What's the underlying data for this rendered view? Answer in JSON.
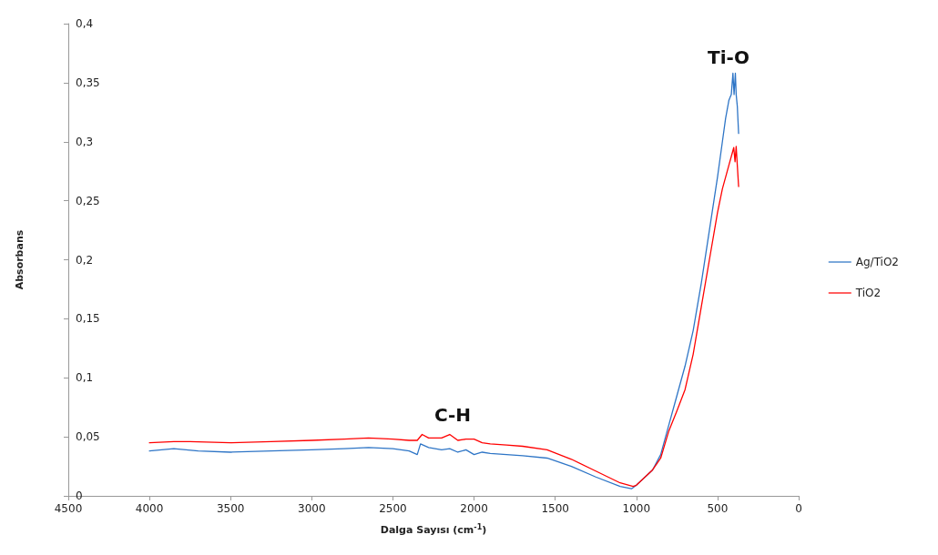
{
  "chart_data": {
    "type": "line",
    "xlabel": "Dalga Sayısı (cm$^{-1}$)",
    "ylabel": "Absorbans",
    "xlim": [
      4500,
      0
    ],
    "xticks": [
      4500,
      4000,
      3500,
      3000,
      2500,
      2000,
      1500,
      1000,
      500,
      0
    ],
    "ylim": [
      0,
      0.4
    ],
    "yticks": [
      {
        "value": 0,
        "label": "0"
      },
      {
        "value": 0.05,
        "label": "0,05"
      },
      {
        "value": 0.1,
        "label": "0,1"
      },
      {
        "value": 0.15,
        "label": "0,15"
      },
      {
        "value": 0.2,
        "label": "0,2"
      },
      {
        "value": 0.25,
        "label": "0,25"
      },
      {
        "value": 0.3,
        "label": "0,3"
      },
      {
        "value": 0.35,
        "label": "0,35"
      },
      {
        "value": 0.4,
        "label": "0,4"
      }
    ],
    "grid": false,
    "legend": "right",
    "marker": "none",
    "line_style": "solid",
    "annotations": [
      "C-H",
      "Ti-O"
    ],
    "series": [
      {
        "name": "Ag/TiO2",
        "color": "#2e75c6",
        "x": [
          4000,
          3850,
          3700,
          3500,
          3250,
          3000,
          2800,
          2650,
          2500,
          2400,
          2350,
          2330,
          2280,
          2200,
          2150,
          2100,
          2050,
          2000,
          1950,
          1900,
          1800,
          1700,
          1550,
          1400,
          1250,
          1100,
          1030,
          1000,
          900,
          850,
          800,
          750,
          700,
          650,
          600,
          550,
          500,
          470,
          450,
          430,
          415,
          405,
          398,
          390,
          385,
          378,
          370
        ],
        "values": [
          0.038,
          0.04,
          0.038,
          0.037,
          0.038,
          0.039,
          0.04,
          0.041,
          0.04,
          0.038,
          0.035,
          0.044,
          0.041,
          0.039,
          0.04,
          0.037,
          0.039,
          0.035,
          0.037,
          0.036,
          0.035,
          0.034,
          0.032,
          0.025,
          0.016,
          0.008,
          0.006,
          0.009,
          0.022,
          0.035,
          0.06,
          0.085,
          0.11,
          0.14,
          0.18,
          0.225,
          0.27,
          0.3,
          0.32,
          0.335,
          0.34,
          0.358,
          0.34,
          0.358,
          0.34,
          0.33,
          0.307
        ]
      },
      {
        "name": "TiO2",
        "color": "#ff0000",
        "x": [
          4000,
          3850,
          3750,
          3500,
          3250,
          3000,
          2800,
          2650,
          2500,
          2400,
          2350,
          2320,
          2280,
          2200,
          2150,
          2100,
          2050,
          2000,
          1950,
          1900,
          1800,
          1700,
          1550,
          1400,
          1250,
          1100,
          1020,
          1000,
          900,
          850,
          800,
          750,
          700,
          650,
          600,
          550,
          500,
          470,
          450,
          430,
          410,
          400,
          392,
          385,
          378,
          370
        ],
        "values": [
          0.045,
          0.046,
          0.046,
          0.045,
          0.046,
          0.047,
          0.048,
          0.049,
          0.048,
          0.047,
          0.047,
          0.052,
          0.049,
          0.049,
          0.052,
          0.047,
          0.048,
          0.048,
          0.045,
          0.044,
          0.043,
          0.042,
          0.039,
          0.031,
          0.021,
          0.011,
          0.008,
          0.009,
          0.022,
          0.032,
          0.055,
          0.072,
          0.09,
          0.12,
          0.16,
          0.2,
          0.24,
          0.26,
          0.27,
          0.28,
          0.29,
          0.295,
          0.283,
          0.296,
          0.28,
          0.262
        ]
      }
    ]
  }
}
